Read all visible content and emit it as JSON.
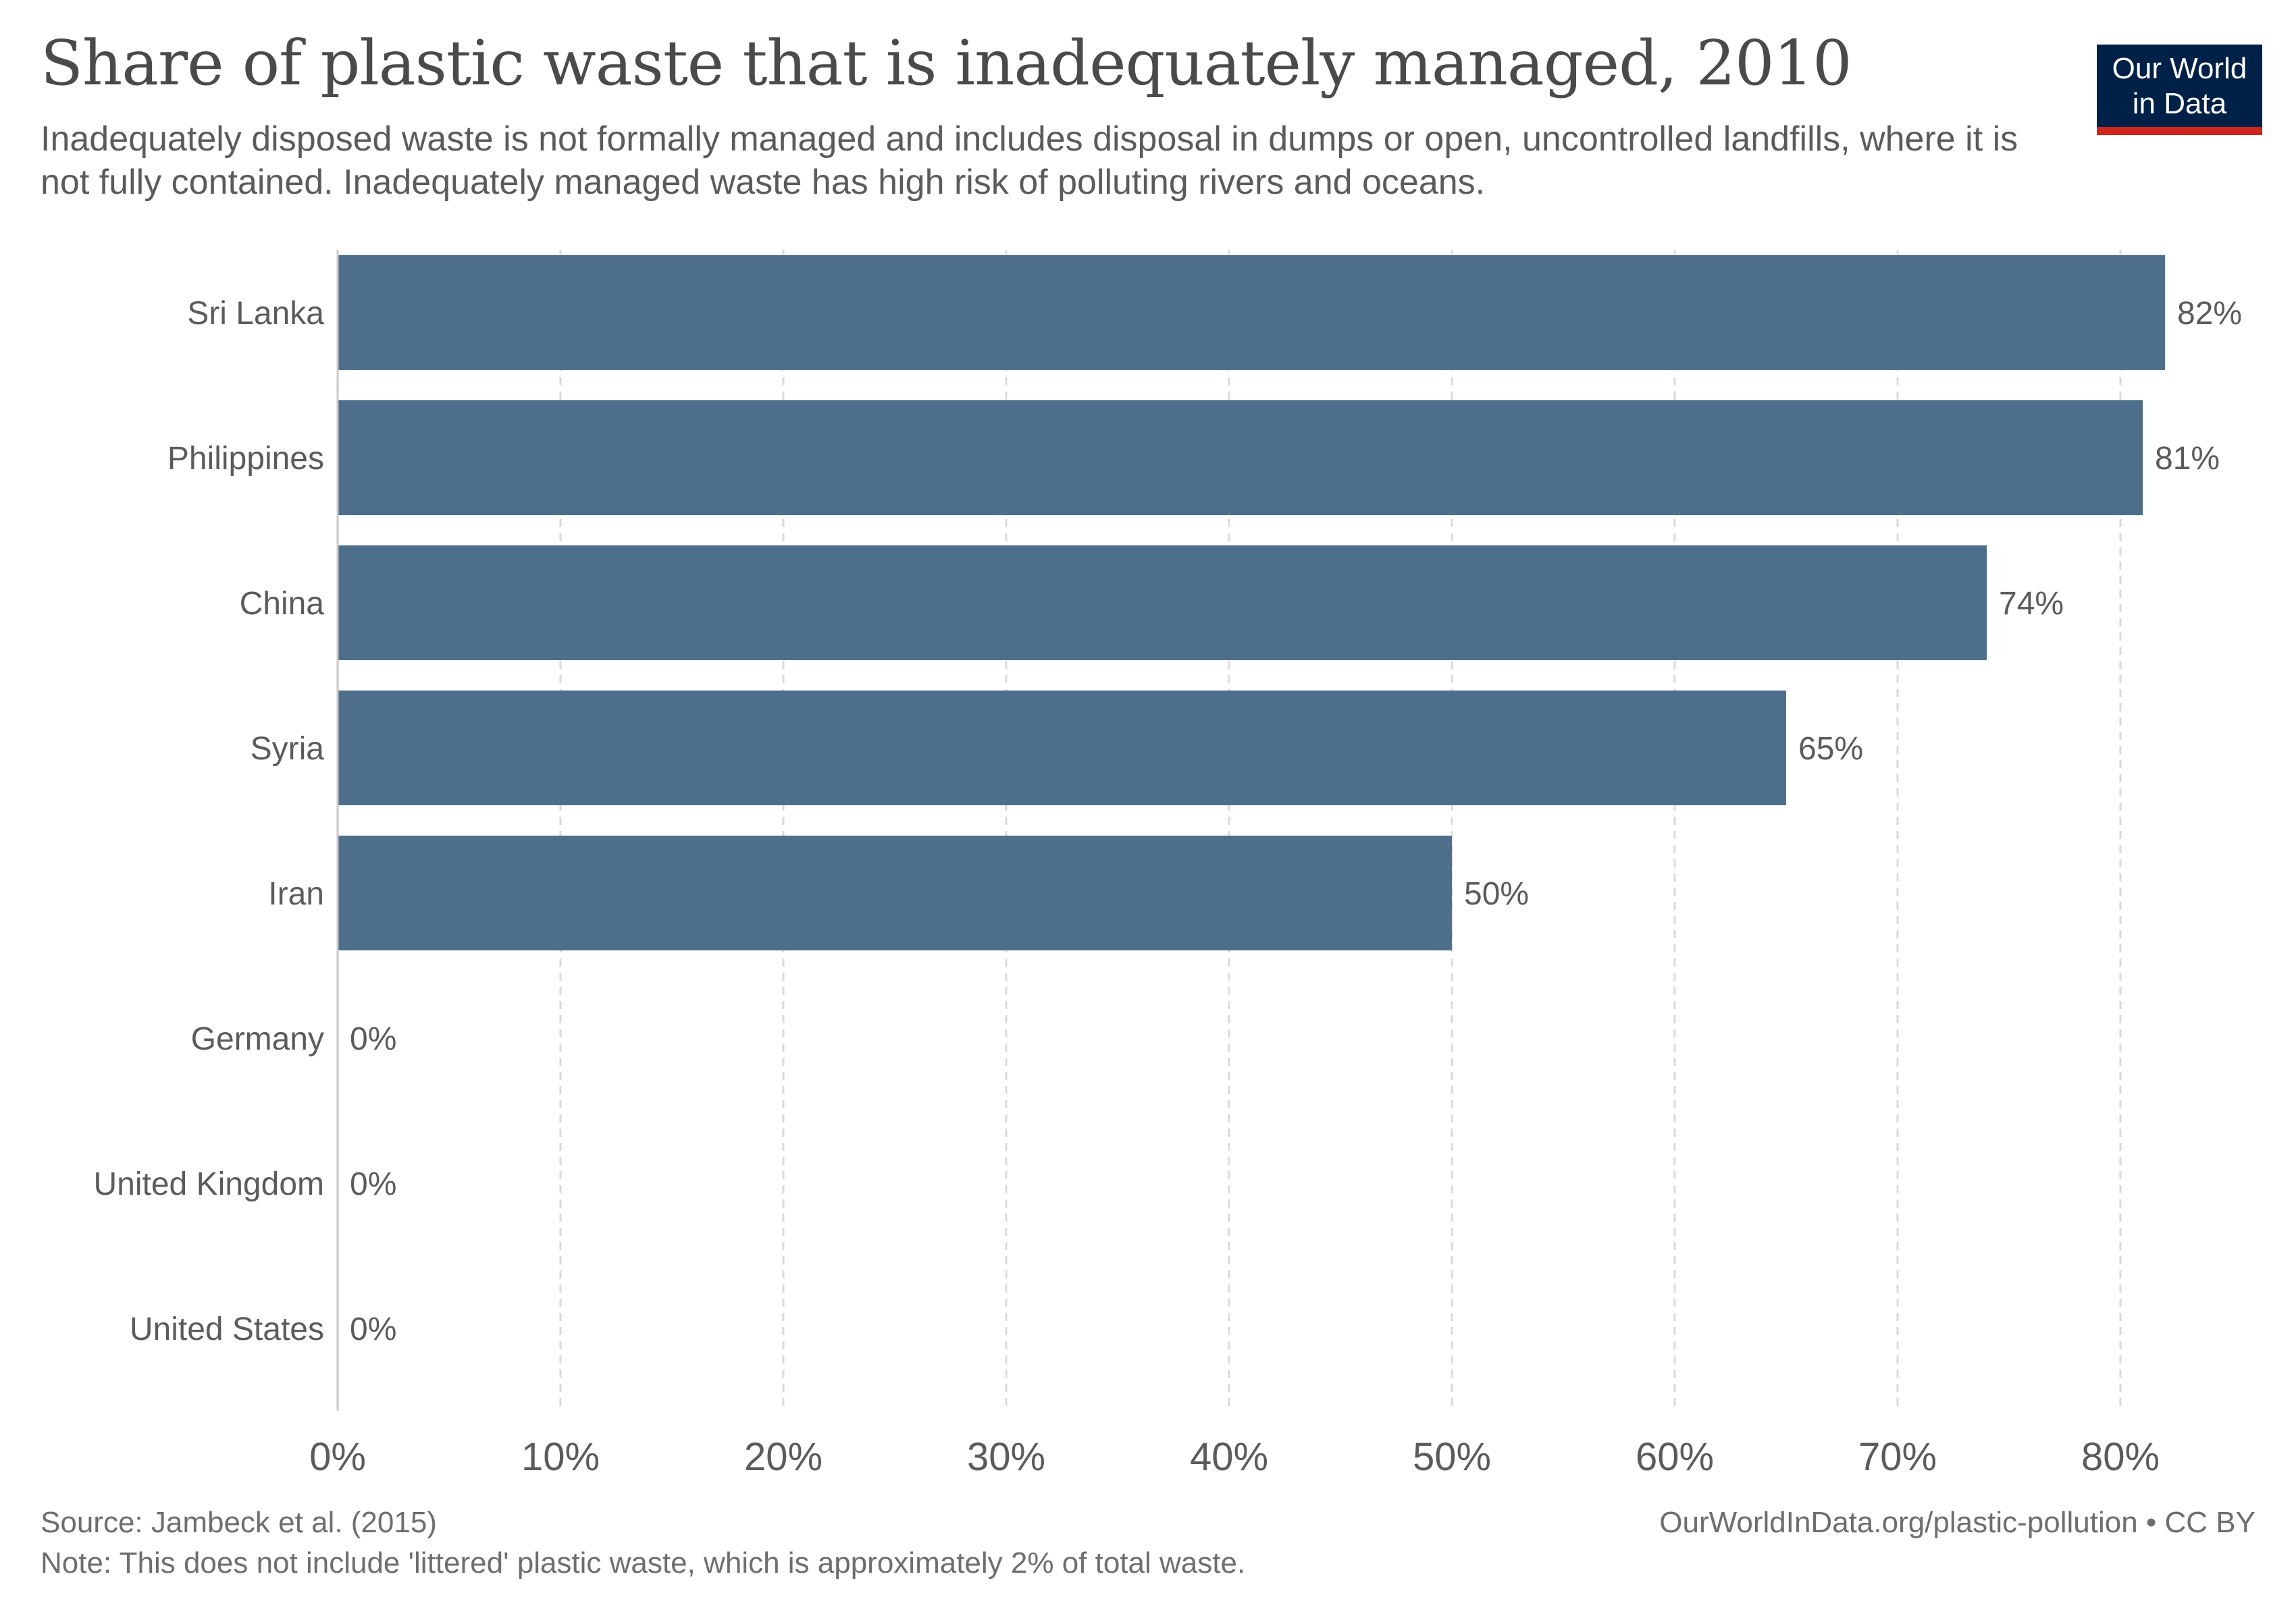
{
  "header": {
    "title": "Share of plastic waste that is inadequately managed, 2010",
    "subtitle": "Inadequately disposed waste is not formally managed and includes disposal in dumps or open, uncontrolled landfills, where it is not fully contained. Inadequately managed waste has high risk of polluting rivers and oceans."
  },
  "logo": {
    "line1": "Our World",
    "line2": "in Data",
    "bg_color": "#002147",
    "accent_color": "#ce261e"
  },
  "chart_data": {
    "type": "bar",
    "orientation": "horizontal",
    "categories": [
      "Sri Lanka",
      "Philippines",
      "China",
      "Syria",
      "Iran",
      "Germany",
      "United Kingdom",
      "United States"
    ],
    "values": [
      82,
      81,
      74,
      65,
      50,
      0,
      0,
      0
    ],
    "value_labels": [
      "82%",
      "81%",
      "74%",
      "65%",
      "50%",
      "0%",
      "0%",
      "0%"
    ],
    "xlim": [
      0,
      85
    ],
    "xticks": [
      0,
      10,
      20,
      30,
      40,
      50,
      60,
      70,
      80
    ],
    "xtick_labels": [
      "0%",
      "10%",
      "20%",
      "30%",
      "40%",
      "50%",
      "60%",
      "70%",
      "80%"
    ],
    "grid": "vertical dashed",
    "bar_color": "#4e6f8b"
  },
  "footer": {
    "source": "Source: Jambeck et al. (2015)",
    "note": "Note: This does not include 'littered' plastic waste, which is approximately 2% of total waste.",
    "attribution": "OurWorldInData.org/plastic-pollution • CC BY"
  }
}
